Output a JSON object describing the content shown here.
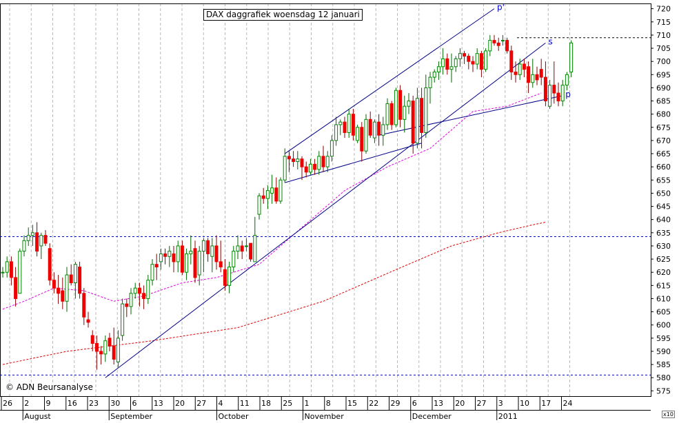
{
  "chart_data": {
    "type": "candlestick",
    "title": "DAX daggrafiek  woensdag 12 januari",
    "copyright": "© ADN Beursanalyse",
    "y_multiplier": "x10",
    "ylim": [
      573,
      722
    ],
    "y_ticks": [
      575,
      580,
      585,
      590,
      595,
      600,
      605,
      610,
      615,
      620,
      625,
      630,
      635,
      640,
      645,
      650,
      655,
      660,
      665,
      670,
      675,
      680,
      685,
      690,
      695,
      700,
      705,
      710,
      715,
      720
    ],
    "x_day_labels": [
      "26",
      "2",
      "9",
      "16",
      "23",
      "30",
      "6",
      "13",
      "20",
      "27",
      "4",
      "11",
      "18",
      "25",
      "1",
      "8",
      "15",
      "22",
      "29",
      "6",
      "13",
      "20",
      "27",
      "3",
      "10",
      "17",
      "24"
    ],
    "x_month_labels": [
      {
        "label": "August",
        "at": 1
      },
      {
        "label": "September",
        "at": 5
      },
      {
        "label": "October",
        "at": 10
      },
      {
        "label": "November",
        "at": 14
      },
      {
        "label": "December",
        "at": 19
      },
      {
        "label": "2011",
        "at": 23
      }
    ],
    "candles": [
      [
        620,
        622,
        618,
        620
      ],
      [
        620,
        626,
        618,
        624
      ],
      [
        624,
        626,
        615,
        618
      ],
      [
        618,
        622,
        607,
        610
      ],
      [
        612,
        629,
        612,
        628
      ],
      [
        628,
        634,
        626,
        632
      ],
      [
        632,
        637,
        630,
        634
      ],
      [
        634,
        638,
        630,
        635
      ],
      [
        635,
        639,
        626,
        628
      ],
      [
        630,
        635,
        625,
        634
      ],
      [
        634,
        636,
        630,
        631
      ],
      [
        629,
        631,
        615,
        617
      ],
      [
        617,
        620,
        612,
        614
      ],
      [
        614,
        619,
        608,
        612
      ],
      [
        613,
        618,
        606,
        609
      ],
      [
        609,
        622,
        605,
        619
      ],
      [
        619,
        623,
        615,
        616
      ],
      [
        616,
        624,
        610,
        623
      ],
      [
        622,
        624,
        610,
        612
      ],
      [
        612,
        614,
        600,
        603
      ],
      [
        602,
        605,
        599,
        601
      ],
      [
        596,
        598,
        590,
        593
      ],
      [
        593,
        596,
        583,
        590
      ],
      [
        590,
        592,
        585,
        589
      ],
      [
        589,
        596,
        586,
        594
      ],
      [
        595,
        597,
        590,
        592
      ],
      [
        592,
        599,
        585,
        587
      ],
      [
        586,
        598,
        584,
        595
      ],
      [
        596,
        610,
        594,
        608
      ],
      [
        608,
        610,
        603,
        607
      ],
      [
        607,
        614,
        604,
        612
      ],
      [
        612,
        616,
        610,
        614
      ],
      [
        614,
        616,
        607,
        612
      ],
      [
        612,
        615,
        606,
        610
      ],
      [
        610,
        619,
        608,
        617
      ],
      [
        617,
        625,
        615,
        623
      ],
      [
        623,
        627,
        617,
        622
      ],
      [
        624,
        629,
        621,
        627
      ],
      [
        627,
        629,
        623,
        626
      ],
      [
        626,
        630,
        622,
        628
      ],
      [
        627,
        630,
        620,
        624
      ],
      [
        624,
        632,
        620,
        630
      ],
      [
        630,
        632,
        619,
        620
      ],
      [
        620,
        629,
        617,
        627
      ],
      [
        627,
        634,
        623,
        628
      ],
      [
        629,
        632,
        616,
        618
      ],
      [
        619,
        630,
        615,
        628
      ],
      [
        628,
        633,
        620,
        632
      ],
      [
        632,
        633,
        624,
        627
      ],
      [
        626,
        633,
        620,
        630
      ],
      [
        630,
        634,
        621,
        624
      ],
      [
        624,
        632,
        620,
        622
      ],
      [
        621,
        625,
        613,
        615
      ],
      [
        615,
        624,
        612,
        622
      ],
      [
        622,
        630,
        620,
        628
      ],
      [
        628,
        634,
        625,
        630
      ],
      [
        630,
        632,
        625,
        628
      ],
      [
        630,
        633,
        628,
        630
      ],
      [
        631,
        631,
        624,
        625
      ],
      [
        624,
        641,
        624,
        634
      ],
      [
        642,
        650,
        640,
        649
      ],
      [
        649,
        652,
        646,
        648
      ],
      [
        648,
        653,
        644,
        651
      ],
      [
        650,
        657,
        646,
        652
      ],
      [
        652,
        656,
        646,
        647
      ],
      [
        647,
        656,
        646,
        655
      ],
      [
        655,
        667,
        654,
        664
      ],
      [
        664,
        666,
        658,
        663
      ],
      [
        663,
        666,
        660,
        662
      ],
      [
        662,
        666,
        659,
        663
      ],
      [
        663,
        664,
        655,
        660
      ],
      [
        660,
        662,
        656,
        658
      ],
      [
        658,
        663,
        657,
        661
      ],
      [
        661,
        663,
        657,
        659
      ],
      [
        659,
        666,
        657,
        664
      ],
      [
        664,
        668,
        658,
        660
      ],
      [
        660,
        666,
        658,
        664
      ],
      [
        664,
        672,
        662,
        670
      ],
      [
        670,
        679,
        668,
        676
      ],
      [
        676,
        678,
        672,
        677
      ],
      [
        677,
        679,
        671,
        673
      ],
      [
        673,
        682,
        671,
        680
      ],
      [
        680,
        682,
        670,
        672
      ],
      [
        670,
        676,
        669,
        675
      ],
      [
        675,
        677,
        662,
        666
      ],
      [
        666,
        680,
        665,
        678
      ],
      [
        678,
        681,
        671,
        672
      ],
      [
        671,
        678,
        669,
        677
      ],
      [
        677,
        680,
        668,
        672
      ],
      [
        672,
        679,
        668,
        676
      ],
      [
        676,
        686,
        674,
        684
      ],
      [
        684,
        685,
        674,
        676
      ],
      [
        676,
        690,
        675,
        689
      ],
      [
        689,
        691,
        675,
        678
      ],
      [
        678,
        687,
        673,
        683
      ],
      [
        683,
        688,
        680,
        685
      ],
      [
        685,
        687,
        665,
        669
      ],
      [
        669,
        690,
        667,
        686
      ],
      [
        686,
        690,
        667,
        673
      ],
      [
        673,
        695,
        671,
        690
      ],
      [
        690,
        696,
        684,
        694
      ],
      [
        694,
        697,
        692,
        696
      ],
      [
        696,
        700,
        693,
        698
      ],
      [
        698,
        705,
        695,
        701
      ],
      [
        701,
        703,
        695,
        697
      ],
      [
        697,
        703,
        692,
        698
      ],
      [
        698,
        702,
        696,
        701
      ],
      [
        701,
        705,
        698,
        703
      ],
      [
        703,
        704,
        699,
        702
      ],
      [
        702,
        703,
        697,
        700
      ],
      [
        700,
        702,
        696,
        699
      ],
      [
        699,
        705,
        697,
        703
      ],
      [
        703,
        704,
        694,
        697
      ],
      [
        697,
        705,
        696,
        704
      ],
      [
        704,
        710,
        702,
        708
      ],
      [
        708,
        710,
        706,
        707
      ],
      [
        707,
        709,
        704,
        706
      ],
      [
        708,
        710,
        706,
        708
      ],
      [
        708,
        709,
        703,
        704
      ],
      [
        704,
        706,
        693,
        696
      ],
      [
        696,
        700,
        692,
        695
      ],
      [
        695,
        701,
        693,
        699
      ],
      [
        699,
        701,
        694,
        697
      ],
      [
        698,
        700,
        688,
        692
      ],
      [
        692,
        701,
        690,
        695
      ],
      [
        695,
        698,
        691,
        693
      ],
      [
        697,
        701,
        691,
        694
      ],
      [
        694,
        700,
        683,
        685
      ],
      [
        683,
        693,
        682,
        691
      ],
      [
        691,
        700,
        684,
        688
      ],
      [
        688,
        692,
        683,
        685
      ],
      [
        685,
        693,
        683,
        691
      ],
      [
        691,
        696,
        689,
        695
      ],
      [
        696,
        708,
        694,
        707
      ]
    ],
    "moving_average_short": [
      [
        0,
        606
      ],
      [
        5,
        609
      ],
      [
        12,
        614
      ],
      [
        19,
        613
      ],
      [
        26,
        609
      ],
      [
        33,
        611
      ],
      [
        42,
        616
      ],
      [
        50,
        618
      ],
      [
        60,
        623
      ],
      [
        70,
        637
      ],
      [
        80,
        651
      ],
      [
        90,
        660
      ],
      [
        100,
        667
      ],
      [
        110,
        681
      ],
      [
        118,
        683
      ],
      [
        126,
        688
      ]
    ],
    "moving_average_long": [
      [
        0,
        585
      ],
      [
        15,
        590
      ],
      [
        35,
        594
      ],
      [
        55,
        599
      ],
      [
        75,
        609
      ],
      [
        92,
        621
      ],
      [
        105,
        630
      ],
      [
        116,
        635
      ],
      [
        124,
        638
      ],
      [
        127,
        639
      ]
    ],
    "horizontal_lines": [
      633.5,
      581,
      709
    ],
    "trendlines": [
      {
        "label": "p'",
        "x1": 66,
        "y1": 665,
        "x2": 115,
        "y2": 720
      },
      {
        "label": "",
        "x1": 66,
        "y1": 654,
        "x2": 98,
        "y2": 669
      },
      {
        "label": "p",
        "x1": 88,
        "y1": 672,
        "x2": 131,
        "y2": 687
      },
      {
        "label": "s",
        "x1": 24,
        "y1": 580,
        "x2": 127,
        "y2": 707
      }
    ]
  }
}
